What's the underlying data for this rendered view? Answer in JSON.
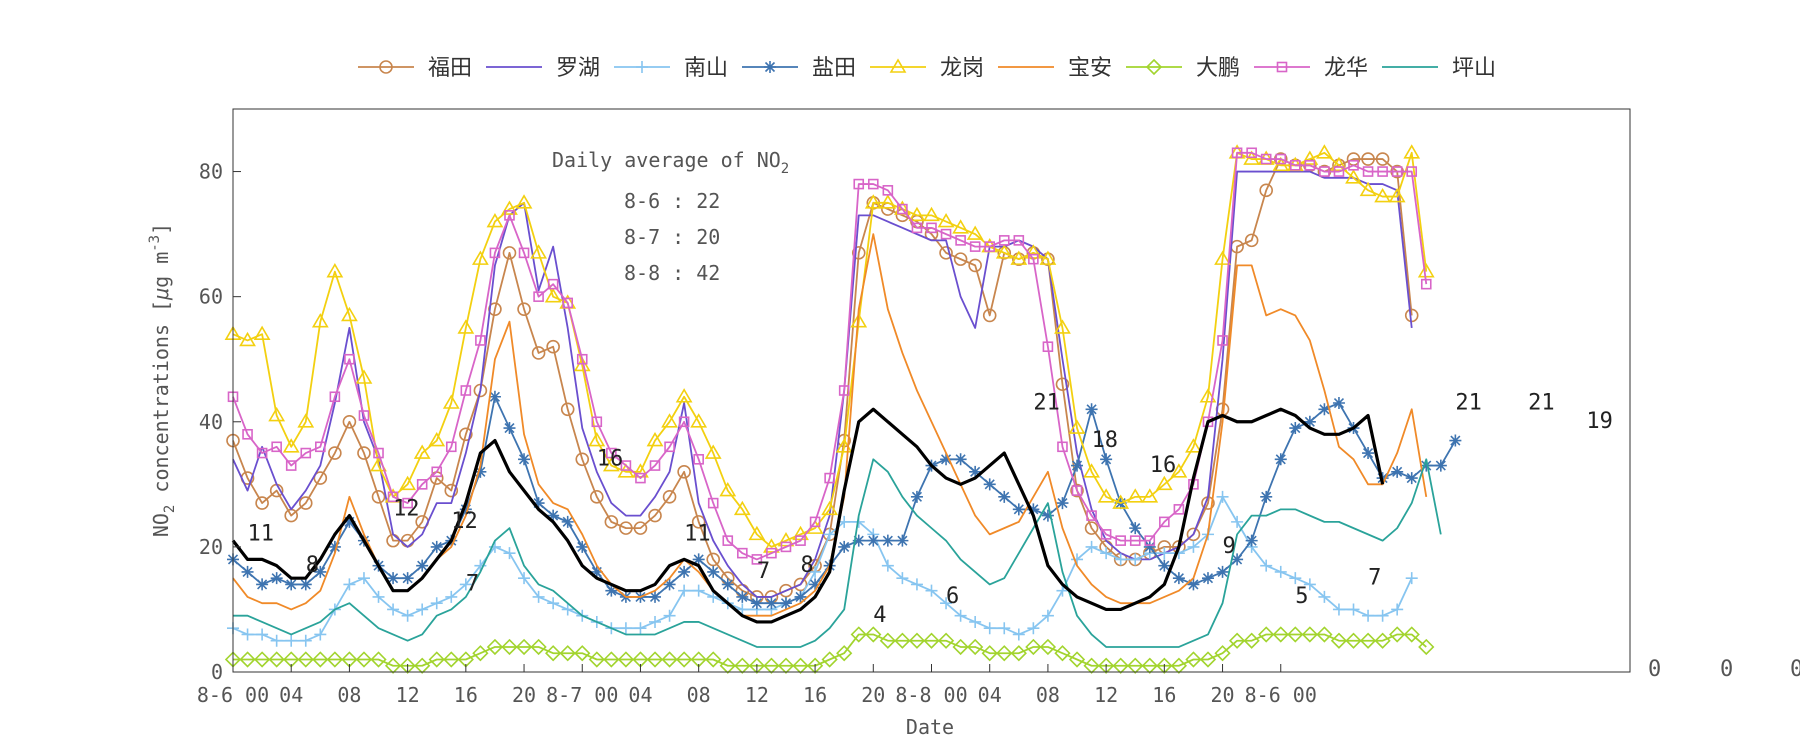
{
  "chart_data": {
    "type": "line",
    "title": "",
    "xlabel": "Date",
    "ylabel": "NO2 concentrations [μg m-3]",
    "ylabel_parts": {
      "pre": "NO",
      "sub": "2",
      "mid": " concentrations [",
      "mu": "μ",
      "post": "g m",
      "sup": "-3",
      "end": "]"
    },
    "ylim": [
      0,
      90
    ],
    "xlim": [
      0,
      96
    ],
    "yticks": [
      0,
      20,
      40,
      60,
      80
    ],
    "xticks": [
      {
        "x": 0,
        "label": "8-6 00"
      },
      {
        "x": 4,
        "label": "04"
      },
      {
        "x": 8,
        "label": "08"
      },
      {
        "x": 12,
        "label": "12"
      },
      {
        "x": 16,
        "label": "16"
      },
      {
        "x": 20,
        "label": "20"
      },
      {
        "x": 24,
        "label": "8-7 00"
      },
      {
        "x": 28,
        "label": "04"
      },
      {
        "x": 32,
        "label": "08"
      },
      {
        "x": 36,
        "label": "12"
      },
      {
        "x": 40,
        "label": "16"
      },
      {
        "x": 44,
        "label": "20"
      },
      {
        "x": 48,
        "label": "8-8 00"
      },
      {
        "x": 52,
        "label": "04"
      },
      {
        "x": 56,
        "label": "08"
      },
      {
        "x": 60,
        "label": "12"
      },
      {
        "x": 64,
        "label": "16"
      },
      {
        "x": 68,
        "label": "20"
      },
      {
        "x": 72,
        "label": "8-6 00"
      }
    ],
    "grid": false,
    "legend_position": "top",
    "colors": {
      "axis": "#333333",
      "text": "#555555",
      "mean": "#000000"
    },
    "annotation": {
      "title_pre": "Daily average of NO",
      "title_sub": "2",
      "lines": [
        "8-6 : 22",
        "8-7 : 20",
        "8-8 : 42"
      ]
    },
    "mean_labels": [
      {
        "x": 1,
        "y": 21,
        "text": "11"
      },
      {
        "x": 5,
        "y": 16,
        "text": "8"
      },
      {
        "x": 11,
        "y": 25,
        "text": "12"
      },
      {
        "x": 15,
        "y": 23,
        "text": "12"
      },
      {
        "x": 16,
        "y": 13,
        "text": "7"
      },
      {
        "x": 25,
        "y": 33,
        "text": "16"
      },
      {
        "x": 31,
        "y": 21,
        "text": "11"
      },
      {
        "x": 36,
        "y": 15,
        "text": "7"
      },
      {
        "x": 39,
        "y": 16,
        "text": "8"
      },
      {
        "x": 44,
        "y": 8,
        "text": "4"
      },
      {
        "x": 49,
        "y": 11,
        "text": "6"
      },
      {
        "x": 55,
        "y": 42,
        "text": "21"
      },
      {
        "x": 59,
        "y": 36,
        "text": "18"
      },
      {
        "x": 63,
        "y": 32,
        "text": "16"
      },
      {
        "x": 68,
        "y": 19,
        "text": "9"
      },
      {
        "x": 73,
        "y": 11,
        "text": "5"
      },
      {
        "x": 78,
        "y": 14,
        "text": "7"
      },
      {
        "x": 84,
        "y": 42,
        "text": "21"
      },
      {
        "x": 89,
        "y": 42,
        "text": "21"
      },
      {
        "x": 93,
        "y": 39,
        "text": "19"
      }
    ],
    "outside_labels": [
      "0",
      "0",
      "0"
    ],
    "series": [
      {
        "name": "福田",
        "color": "#c8864e",
        "marker": "circle",
        "values": [
          37,
          31,
          27,
          29,
          25,
          27,
          31,
          35,
          40,
          35,
          28,
          21,
          21,
          24,
          31,
          29,
          38,
          45,
          58,
          67,
          58,
          51,
          52,
          42,
          34,
          28,
          24,
          23,
          23,
          25,
          28,
          32,
          24,
          18,
          15,
          13,
          12,
          12,
          13,
          14,
          17,
          22,
          37,
          67,
          75,
          74,
          73,
          72,
          70,
          67,
          66,
          65,
          57,
          67,
          66,
          67,
          66,
          46,
          29,
          23,
          20,
          18,
          18,
          19,
          20,
          20,
          22,
          27,
          42,
          68,
          69,
          77,
          82,
          81,
          81,
          80,
          81,
          82,
          82,
          82,
          80,
          57
        ]
      },
      {
        "name": "罗湖",
        "color": "#6a4fcf",
        "marker": "none",
        "values": [
          34,
          29,
          36,
          30,
          26,
          29,
          33,
          43,
          55,
          40,
          34,
          22,
          20,
          22,
          27,
          27,
          35,
          45,
          65,
          73,
          75,
          61,
          68,
          55,
          39,
          32,
          27,
          25,
          25,
          28,
          32,
          43,
          27,
          21,
          17,
          14,
          12,
          12,
          13,
          14,
          18,
          25,
          45,
          73,
          73,
          72,
          71,
          70,
          69,
          69,
          60,
          55,
          68,
          68,
          69,
          68,
          66,
          50,
          35,
          26,
          21,
          19,
          18,
          18,
          19,
          20,
          22,
          28,
          50,
          80,
          80,
          80,
          80,
          80,
          80,
          79,
          79,
          79,
          78,
          78,
          77,
          55
        ]
      },
      {
        "name": "南山",
        "color": "#87c5f0",
        "marker": "plus",
        "values": [
          7,
          6,
          6,
          5,
          5,
          5,
          6,
          10,
          14,
          15,
          12,
          10,
          9,
          10,
          11,
          12,
          14,
          17,
          20,
          19,
          15,
          12,
          11,
          10,
          9,
          8,
          7,
          7,
          7,
          8,
          9,
          13,
          13,
          12,
          11,
          10,
          10,
          10,
          11,
          12,
          16,
          22,
          24,
          24,
          22,
          17,
          15,
          14,
          13,
          11,
          9,
          8,
          7,
          7,
          6,
          7,
          9,
          13,
          18,
          20,
          19,
          18,
          18,
          19,
          19,
          19,
          20,
          22,
          28,
          24,
          20,
          17,
          16,
          15,
          14,
          12,
          10,
          10,
          9,
          9,
          10,
          15
        ]
      },
      {
        "name": "盐田",
        "color": "#3e74b0",
        "marker": "star",
        "values": [
          18,
          16,
          14,
          15,
          14,
          14,
          16,
          20,
          24,
          21,
          17,
          15,
          15,
          17,
          20,
          21,
          26,
          32,
          44,
          39,
          34,
          27,
          25,
          24,
          20,
          16,
          13,
          12,
          12,
          12,
          14,
          16,
          18,
          16,
          14,
          12,
          11,
          11,
          11,
          12,
          14,
          17,
          20,
          21,
          21,
          21,
          21,
          28,
          33,
          34,
          34,
          32,
          30,
          28,
          26,
          26,
          25,
          27,
          33,
          42,
          34,
          27,
          23,
          20,
          17,
          15,
          14,
          15,
          16,
          18,
          21,
          28,
          34,
          39,
          40,
          42,
          43,
          39,
          35,
          31,
          32,
          31,
          33,
          33,
          37
        ]
      },
      {
        "name": "龙岗",
        "color": "#f3d010",
        "marker": "triangle",
        "values": [
          54,
          53,
          54,
          41,
          36,
          40,
          56,
          64,
          57,
          47,
          33,
          28,
          30,
          35,
          37,
          43,
          55,
          66,
          72,
          74,
          75,
          67,
          60,
          59,
          49,
          37,
          33,
          32,
          32,
          37,
          40,
          44,
          40,
          35,
          29,
          26,
          22,
          20,
          21,
          22,
          23,
          26,
          36,
          56,
          75,
          75,
          74,
          73,
          73,
          72,
          71,
          70,
          68,
          67,
          66,
          67,
          66,
          55,
          39,
          32,
          28,
          27,
          28,
          28,
          30,
          32,
          36,
          44,
          66,
          83,
          82,
          82,
          81,
          81,
          82,
          83,
          81,
          79,
          77,
          76,
          76,
          83,
          64
        ]
      },
      {
        "name": "宝安",
        "color": "#f08a28",
        "marker": "none",
        "values": [
          15,
          12,
          11,
          11,
          10,
          11,
          13,
          19,
          28,
          22,
          17,
          13,
          13,
          15,
          18,
          20,
          25,
          33,
          50,
          56,
          38,
          30,
          27,
          26,
          22,
          17,
          14,
          12,
          12,
          13,
          15,
          18,
          16,
          13,
          11,
          9,
          9,
          9,
          10,
          11,
          13,
          17,
          28,
          58,
          70,
          58,
          51,
          45,
          40,
          35,
          30,
          25,
          22,
          23,
          24,
          28,
          32,
          23,
          17,
          14,
          12,
          11,
          11,
          11,
          12,
          13,
          15,
          22,
          40,
          65,
          65,
          57,
          58,
          57,
          53,
          45,
          36,
          34,
          30,
          30,
          35,
          42,
          28
        ]
      },
      {
        "name": "大鹏",
        "color": "#a2d42e",
        "marker": "diamond",
        "values": [
          2,
          2,
          2,
          2,
          2,
          2,
          2,
          2,
          2,
          2,
          2,
          1,
          1,
          1,
          2,
          2,
          2,
          3,
          4,
          4,
          4,
          4,
          3,
          3,
          3,
          2,
          2,
          2,
          2,
          2,
          2,
          2,
          2,
          2,
          1,
          1,
          1,
          1,
          1,
          1,
          1,
          2,
          3,
          6,
          6,
          5,
          5,
          5,
          5,
          5,
          4,
          4,
          3,
          3,
          3,
          4,
          4,
          3,
          2,
          1,
          1,
          1,
          1,
          1,
          1,
          1,
          2,
          2,
          3,
          5,
          5,
          6,
          6,
          6,
          6,
          6,
          5,
          5,
          5,
          5,
          6,
          6,
          4
        ]
      },
      {
        "name": "龙华",
        "color": "#d865c8",
        "marker": "square",
        "values": [
          44,
          38,
          35,
          36,
          33,
          35,
          36,
          44,
          50,
          41,
          35,
          28,
          27,
          30,
          32,
          36,
          45,
          53,
          67,
          73,
          67,
          60,
          62,
          59,
          50,
          40,
          35,
          33,
          31,
          33,
          36,
          40,
          34,
          27,
          21,
          19,
          18,
          19,
          20,
          21,
          24,
          31,
          45,
          78,
          78,
          77,
          74,
          71,
          71,
          70,
          69,
          68,
          68,
          69,
          69,
          66,
          52,
          36,
          29,
          25,
          22,
          21,
          21,
          21,
          24,
          26,
          30,
          40,
          53,
          83,
          83,
          82,
          82,
          81,
          81,
          80,
          80,
          81,
          80,
          80,
          80,
          80,
          62
        ]
      },
      {
        "name": "坪山",
        "color": "#2aa39a",
        "marker": "none",
        "values": [
          9,
          9,
          8,
          7,
          6,
          7,
          8,
          10,
          11,
          9,
          7,
          6,
          5,
          6,
          9,
          10,
          12,
          16,
          21,
          23,
          17,
          14,
          13,
          11,
          9,
          8,
          7,
          6,
          6,
          6,
          7,
          8,
          8,
          7,
          6,
          5,
          4,
          4,
          4,
          4,
          5,
          7,
          10,
          25,
          34,
          32,
          28,
          25,
          23,
          21,
          18,
          16,
          14,
          15,
          19,
          23,
          27,
          16,
          9,
          6,
          4,
          4,
          4,
          4,
          4,
          4,
          5,
          6,
          11,
          22,
          25,
          25,
          26,
          26,
          25,
          24,
          24,
          23,
          22,
          21,
          23,
          27,
          34,
          22
        ]
      },
      {
        "name": "",
        "color": "#000000",
        "marker": "none",
        "width": 3.2,
        "values": [
          21,
          18,
          18,
          17,
          15,
          15,
          18,
          22,
          25,
          21,
          17,
          13,
          13,
          15,
          18,
          21,
          27,
          35,
          37,
          32,
          29,
          26,
          24,
          21,
          17,
          15,
          14,
          13,
          13,
          14,
          17,
          18,
          17,
          13,
          11,
          9,
          8,
          8,
          9,
          10,
          12,
          16,
          29,
          40,
          42,
          40,
          38,
          36,
          33,
          31,
          30,
          31,
          33,
          35,
          30,
          25,
          17,
          14,
          12,
          11,
          10,
          10,
          11,
          12,
          14,
          20,
          31,
          40,
          41,
          40,
          40,
          41,
          42,
          41,
          39,
          38,
          38,
          39,
          41,
          30
        ]
      }
    ]
  }
}
